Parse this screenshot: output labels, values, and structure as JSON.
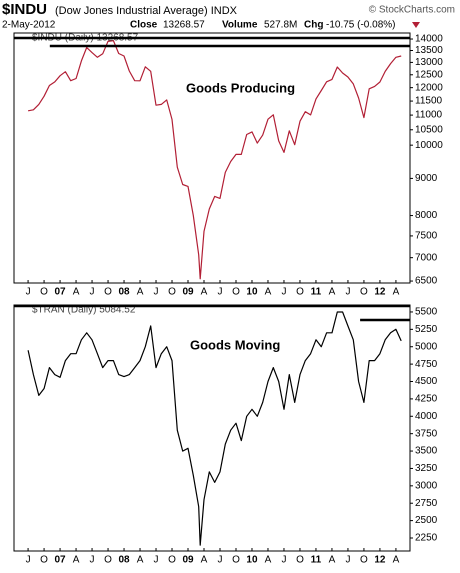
{
  "header": {
    "symbol": "$INDU",
    "name": "(Dow Jones Industrial Average) INDX",
    "source": "© StockCharts.com",
    "date": "2-May-2012",
    "close_label": "Close",
    "close": "13268.57",
    "volume_label": "Volume",
    "volume": "527.8M",
    "chg_label": "Chg",
    "chg": "-10.75 (-0.08%)"
  },
  "chart_data": [
    {
      "type": "line",
      "annotation": "Goods Producing",
      "log_scale": true,
      "grid": false,
      "xlim": [
        2006.28,
        2012.47
      ],
      "ylim": [
        6460,
        14270
      ],
      "yticks": [
        6500,
        7000,
        7500,
        8000,
        9000,
        10000,
        10500,
        11000,
        11500,
        12000,
        12500,
        13000,
        13500,
        14000
      ],
      "xticks": [
        {
          "value": 2006.5,
          "label": "J"
        },
        {
          "value": 2006.75,
          "label": "O"
        },
        {
          "value": 2007,
          "label": "07"
        },
        {
          "value": 2007.25,
          "label": "A"
        },
        {
          "value": 2007.5,
          "label": "J"
        },
        {
          "value": 2007.75,
          "label": "O"
        },
        {
          "value": 2008,
          "label": "08"
        },
        {
          "value": 2008.25,
          "label": "A"
        },
        {
          "value": 2008.5,
          "label": "J"
        },
        {
          "value": 2008.75,
          "label": "O"
        },
        {
          "value": 2009,
          "label": "09"
        },
        {
          "value": 2009.25,
          "label": "A"
        },
        {
          "value": 2009.5,
          "label": "J"
        },
        {
          "value": 2009.75,
          "label": "O"
        },
        {
          "value": 2010,
          "label": "10"
        },
        {
          "value": 2010.25,
          "label": "A"
        },
        {
          "value": 2010.5,
          "label": "J"
        },
        {
          "value": 2010.75,
          "label": "O"
        },
        {
          "value": 2011,
          "label": "11"
        },
        {
          "value": 2011.25,
          "label": "A"
        },
        {
          "value": 2011.5,
          "label": "J"
        },
        {
          "value": 2011.75,
          "label": "O"
        },
        {
          "value": 2012,
          "label": "12"
        },
        {
          "value": 2012.25,
          "label": "A"
        }
      ],
      "levels": [
        {
          "y": 14044,
          "from": 2006.28
        },
        {
          "y": 13693,
          "from": 2006.84
        }
      ],
      "x": [
        2006.5,
        2006.583,
        2006.667,
        2006.75,
        2006.833,
        2006.917,
        2007.0,
        2007.083,
        2007.167,
        2007.25,
        2007.333,
        2007.417,
        2007.5,
        2007.583,
        2007.667,
        2007.75,
        2007.833,
        2007.917,
        2008.0,
        2008.083,
        2008.167,
        2008.25,
        2008.333,
        2008.417,
        2008.5,
        2008.583,
        2008.667,
        2008.75,
        2008.833,
        2008.917,
        2009.0,
        2009.083,
        2009.167,
        2009.19,
        2009.25,
        2009.333,
        2009.417,
        2009.5,
        2009.583,
        2009.667,
        2009.75,
        2009.833,
        2009.917,
        2010.0,
        2010.083,
        2010.167,
        2010.25,
        2010.333,
        2010.417,
        2010.5,
        2010.583,
        2010.667,
        2010.75,
        2010.833,
        2010.917,
        2011.0,
        2011.083,
        2011.167,
        2011.25,
        2011.333,
        2011.417,
        2011.5,
        2011.583,
        2011.667,
        2011.75,
        2011.833,
        2011.917,
        2012.0,
        2012.083,
        2012.167,
        2012.25,
        2012.333
      ],
      "series": [
        {
          "name": "$INDU (Daily) 13268.57",
          "color": "#b21f35",
          "values": [
            11150,
            11185,
            11381,
            11679,
            12081,
            12221,
            12463,
            12622,
            12268,
            12354,
            13063,
            13628,
            13409,
            13212,
            13358,
            13896,
            13930,
            13372,
            13265,
            12650,
            12266,
            12263,
            12820,
            12638,
            11350,
            11378,
            11544,
            10851,
            9325,
            8829,
            8776,
            8001,
            7063,
            6547,
            7609,
            8168,
            8500,
            8447,
            9172,
            9496,
            9712,
            9713,
            10345,
            10428,
            10067,
            10325,
            10857,
            11009,
            10137,
            9774,
            10466,
            10015,
            10788,
            11118,
            11006,
            11578,
            11892,
            12226,
            12320,
            12811,
            12570,
            12414,
            12143,
            11614,
            10913,
            11955,
            12046,
            12218,
            12633,
            12952,
            13212,
            13268.57
          ]
        }
      ]
    },
    {
      "type": "line",
      "annotation": "Goods Moving",
      "log_scale": false,
      "grid": false,
      "xlim": [
        2006.28,
        2012.47
      ],
      "ylim": [
        2063,
        5600
      ],
      "yticks": [
        2250,
        2500,
        2750,
        3000,
        3250,
        3500,
        3750,
        4000,
        4250,
        4500,
        4750,
        5000,
        5250,
        5500
      ],
      "xticks": [
        {
          "value": 2006.5,
          "label": "J"
        },
        {
          "value": 2006.75,
          "label": "O"
        },
        {
          "value": 2007,
          "label": "07"
        },
        {
          "value": 2007.25,
          "label": "A"
        },
        {
          "value": 2007.5,
          "label": "J"
        },
        {
          "value": 2007.75,
          "label": "O"
        },
        {
          "value": 2008,
          "label": "08"
        },
        {
          "value": 2008.25,
          "label": "A"
        },
        {
          "value": 2008.5,
          "label": "J"
        },
        {
          "value": 2008.75,
          "label": "O"
        },
        {
          "value": 2009,
          "label": "09"
        },
        {
          "value": 2009.25,
          "label": "A"
        },
        {
          "value": 2009.5,
          "label": "J"
        },
        {
          "value": 2009.75,
          "label": "O"
        },
        {
          "value": 2010,
          "label": "10"
        },
        {
          "value": 2010.25,
          "label": "A"
        },
        {
          "value": 2010.5,
          "label": "J"
        },
        {
          "value": 2010.75,
          "label": "O"
        },
        {
          "value": 2011,
          "label": "11"
        },
        {
          "value": 2011.25,
          "label": "A"
        },
        {
          "value": 2011.5,
          "label": "J"
        },
        {
          "value": 2011.75,
          "label": "O"
        },
        {
          "value": 2012,
          "label": "12"
        },
        {
          "value": 2012.25,
          "label": "A"
        }
      ],
      "levels": [
        {
          "y": 5585,
          "from": 2006.28
        },
        {
          "y": 5385,
          "from": 2011.69
        }
      ],
      "x": [
        2006.5,
        2006.583,
        2006.667,
        2006.75,
        2006.833,
        2006.917,
        2007.0,
        2007.083,
        2007.167,
        2007.25,
        2007.333,
        2007.417,
        2007.5,
        2007.583,
        2007.667,
        2007.75,
        2007.833,
        2007.917,
        2008.0,
        2008.083,
        2008.167,
        2008.25,
        2008.333,
        2008.417,
        2008.5,
        2008.583,
        2008.667,
        2008.75,
        2008.833,
        2008.917,
        2009.0,
        2009.083,
        2009.167,
        2009.19,
        2009.25,
        2009.333,
        2009.417,
        2009.5,
        2009.583,
        2009.667,
        2009.75,
        2009.833,
        2009.917,
        2010.0,
        2010.083,
        2010.167,
        2010.25,
        2010.333,
        2010.417,
        2010.5,
        2010.583,
        2010.667,
        2010.75,
        2010.833,
        2010.917,
        2011.0,
        2011.083,
        2011.167,
        2011.25,
        2011.333,
        2011.417,
        2011.5,
        2011.583,
        2011.667,
        2011.75,
        2011.833,
        2011.917,
        2012.0,
        2012.083,
        2012.167,
        2012.25,
        2012.333
      ],
      "series": [
        {
          "name": "$TRAN (Daily) 5084.52",
          "color": "#000000",
          "values": [
            4950,
            4600,
            4300,
            4400,
            4700,
            4600,
            4560,
            4800,
            4900,
            4900,
            5100,
            5200,
            5100,
            4900,
            4700,
            4800,
            4800,
            4600,
            4570,
            4600,
            4700,
            4800,
            5000,
            5300,
            4700,
            4900,
            5000,
            4800,
            3800,
            3500,
            3540,
            3150,
            2700,
            2146,
            2800,
            3200,
            3050,
            3200,
            3600,
            3800,
            3900,
            3650,
            4000,
            4100,
            4000,
            4200,
            4500,
            4700,
            4500,
            4100,
            4600,
            4200,
            4600,
            4800,
            4900,
            5100,
            5000,
            5200,
            5200,
            5500,
            5500,
            5300,
            5100,
            4500,
            4200,
            4800,
            4800,
            4900,
            5100,
            5200,
            5250,
            5084.52
          ]
        }
      ]
    }
  ]
}
